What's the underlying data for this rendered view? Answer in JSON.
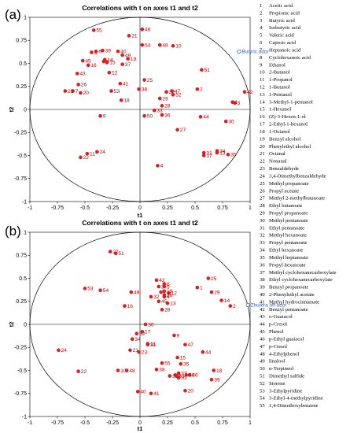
{
  "colors": {
    "point": "#e01b1b",
    "label": "#c00000",
    "odor": "#2e5fb8",
    "axis": "#000000",
    "circle": "#000000"
  },
  "chart_data": [
    {
      "type": "scatter",
      "panel": "(a)",
      "title": "Correlations with t on axes t1 and t2",
      "xlabel": "t1",
      "ylabel": "t2",
      "xlim": [
        -1,
        1
      ],
      "ylim": [
        -1,
        1
      ],
      "xticks": [
        "-1",
        "-0.75",
        "-0.5",
        "-0.25",
        "0",
        "0.25",
        "0.5",
        "0.75",
        "1"
      ],
      "yticks": [
        "1",
        "0.75",
        "0.5",
        "0.25",
        "0",
        "-0.25",
        "-0.5",
        "-0.75",
        "-1"
      ],
      "circle_radius": 1,
      "odor": {
        "label": "Butyric odor",
        "x": 0.9,
        "y": 0.63
      },
      "points": [
        {
          "id": "1",
          "x": 0.84,
          "y": 0.08
        },
        {
          "id": "2",
          "x": 0.52,
          "y": 0.22
        },
        {
          "id": "3",
          "x": 0.86,
          "y": 0.07
        },
        {
          "id": "4",
          "x": 0.16,
          "y": -0.61
        },
        {
          "id": "5",
          "x": -0.44,
          "y": 0.62
        },
        {
          "id": "6",
          "x": -0.4,
          "y": 0.63
        },
        {
          "id": "7",
          "x": -0.61,
          "y": 0.2
        },
        {
          "id": "8",
          "x": -0.33,
          "y": 0.52
        },
        {
          "id": "9",
          "x": -0.36,
          "y": -0.07
        },
        {
          "id": "10",
          "x": 0.3,
          "y": 0.69
        },
        {
          "id": "11",
          "x": -0.48,
          "y": -0.48
        },
        {
          "id": "12",
          "x": -0.28,
          "y": 0.4
        },
        {
          "id": "13",
          "x": 0.7,
          "y": -0.47
        },
        {
          "id": "14",
          "x": -0.32,
          "y": 0.54
        },
        {
          "id": "15",
          "x": -0.3,
          "y": 0.51
        },
        {
          "id": "16",
          "x": -0.47,
          "y": 0.48
        },
        {
          "id": "17",
          "x": 0.58,
          "y": -0.5
        },
        {
          "id": "18",
          "x": -0.17,
          "y": 0.1
        },
        {
          "id": "19",
          "x": -0.11,
          "y": 0.55
        },
        {
          "id": "20",
          "x": -0.54,
          "y": 0.18
        },
        {
          "id": "21",
          "x": -0.1,
          "y": 0.8
        },
        {
          "id": "22",
          "x": -0.54,
          "y": -0.52
        },
        {
          "id": "23",
          "x": -0.68,
          "y": 0.2
        },
        {
          "id": "24",
          "x": -0.39,
          "y": -0.46
        },
        {
          "id": "25",
          "x": 0.04,
          "y": 0.32
        },
        {
          "id": "26",
          "x": -0.56,
          "y": 0.27
        },
        {
          "id": "27",
          "x": 0.34,
          "y": -0.22
        },
        {
          "id": "28",
          "x": 0.2,
          "y": 0.04
        },
        {
          "id": "29",
          "x": 0.18,
          "y": 0.12
        },
        {
          "id": "30",
          "x": 0.78,
          "y": -0.13
        },
        {
          "id": "31",
          "x": 0.58,
          "y": -0.47
        },
        {
          "id": "32",
          "x": 0.24,
          "y": 0.19
        },
        {
          "id": "33",
          "x": 0.13,
          "y": -0.01
        },
        {
          "id": "34",
          "x": 0.7,
          "y": -0.45
        },
        {
          "id": "35",
          "x": 0.8,
          "y": -0.49
        },
        {
          "id": "36",
          "x": 0.2,
          "y": -0.06
        },
        {
          "id": "37",
          "x": -0.16,
          "y": 0.49
        },
        {
          "id": "38",
          "x": -0.01,
          "y": 0.22
        },
        {
          "id": "39",
          "x": -0.34,
          "y": 0.64
        },
        {
          "id": "40",
          "x": -0.2,
          "y": 0.63
        },
        {
          "id": "41",
          "x": -0.18,
          "y": 0.28
        },
        {
          "id": "42",
          "x": 0.95,
          "y": 0.19
        },
        {
          "id": "43",
          "x": -0.57,
          "y": 0.39
        },
        {
          "id": "44",
          "x": 0.55,
          "y": -0.08
        },
        {
          "id": "45",
          "x": -0.52,
          "y": 0.53
        },
        {
          "id": "46",
          "x": 0.02,
          "y": 0.87
        },
        {
          "id": "47",
          "x": 0.29,
          "y": 0.2
        },
        {
          "id": "48",
          "x": 0.18,
          "y": 0.7
        },
        {
          "id": "49",
          "x": -0.16,
          "y": 0.59
        },
        {
          "id": "50",
          "x": 0.04,
          "y": -0.07
        },
        {
          "id": "51",
          "x": 0.56,
          "y": 0.43
        },
        {
          "id": "52",
          "x": 0.3,
          "y": 0.16
        },
        {
          "id": "53",
          "x": -0.26,
          "y": 0.2
        },
        {
          "id": "54",
          "x": 0.02,
          "y": 0.7
        },
        {
          "id": "55",
          "x": -0.42,
          "y": 0.86
        }
      ]
    },
    {
      "type": "scatter",
      "panel": "(b)",
      "title": "Correlations with t on axes t1 and t2",
      "xlabel": "t1",
      "ylabel": "t2",
      "xlim": [
        -1,
        1
      ],
      "ylim": [
        -1,
        1
      ],
      "xticks": [
        "-1",
        "-0.75",
        "-0.5",
        "-0.25",
        "0",
        "0.25",
        "0.5",
        "0.75",
        "1"
      ],
      "yticks": [
        "1",
        "0.75",
        "0.5",
        "0.25",
        "0",
        "-0.25",
        "-0.5",
        "-0.75",
        "-1"
      ],
      "circle_radius": 1,
      "odor": {
        "label": "Zhutera off-odor",
        "x": 0.98,
        "y": 0.21
      },
      "points": [
        {
          "id": "1",
          "x": 0.52,
          "y": 0.4
        },
        {
          "id": "2",
          "x": 0.82,
          "y": 0.2
        },
        {
          "id": "3",
          "x": 0.17,
          "y": 0.41
        },
        {
          "id": "4",
          "x": 0.22,
          "y": 0.3
        },
        {
          "id": "5",
          "x": 0.22,
          "y": 0.41
        },
        {
          "id": "6",
          "x": 0.22,
          "y": 0.44
        },
        {
          "id": "7",
          "x": 0.19,
          "y": 0.35
        },
        {
          "id": "8",
          "x": 0.32,
          "y": -0.55
        },
        {
          "id": "9",
          "x": 0.31,
          "y": -0.12
        },
        {
          "id": "10",
          "x": -0.2,
          "y": -0.5
        },
        {
          "id": "11",
          "x": 0.07,
          "y": -0.21
        },
        {
          "id": "12",
          "x": 0.26,
          "y": 0.34
        },
        {
          "id": "13",
          "x": 0.25,
          "y": 0.23
        },
        {
          "id": "14",
          "x": 0.74,
          "y": 0.26
        },
        {
          "id": "15",
          "x": 0.34,
          "y": -0.36
        },
        {
          "id": "16",
          "x": -0.14,
          "y": 0.2
        },
        {
          "id": "17",
          "x": 0.02,
          "y": -0.08
        },
        {
          "id": "18",
          "x": 0.67,
          "y": -0.5
        },
        {
          "id": "19",
          "x": 0.22,
          "y": 0.36
        },
        {
          "id": "20",
          "x": 0.41,
          "y": -0.72
        },
        {
          "id": "21",
          "x": -0.09,
          "y": -0.28
        },
        {
          "id": "22",
          "x": -0.56,
          "y": -0.51
        },
        {
          "id": "23",
          "x": -0.01,
          "y": -0.3
        },
        {
          "id": "24",
          "x": -0.74,
          "y": -0.28
        },
        {
          "id": "25",
          "x": 0.62,
          "y": 0.5
        },
        {
          "id": "26",
          "x": 0.22,
          "y": 0.32
        },
        {
          "id": "27",
          "x": -0.27,
          "y": 0.79
        },
        {
          "id": "28",
          "x": 0.2,
          "y": 0.16
        },
        {
          "id": "29",
          "x": 0.65,
          "y": 0.35
        },
        {
          "id": "30",
          "x": 0.05,
          "y": 0.0
        },
        {
          "id": "31",
          "x": 0.07,
          "y": -0.22
        },
        {
          "id": "32",
          "x": 0.1,
          "y": 0.3
        },
        {
          "id": "33",
          "x": 0.35,
          "y": -0.58
        },
        {
          "id": "34",
          "x": -0.07,
          "y": -0.16
        },
        {
          "id": "35",
          "x": 0.37,
          "y": -0.43
        },
        {
          "id": "36",
          "x": 0.27,
          "y": -0.56
        },
        {
          "id": "37",
          "x": 0.35,
          "y": -0.53
        },
        {
          "id": "38",
          "x": 0.15,
          "y": -0.49
        },
        {
          "id": "39",
          "x": 0.65,
          "y": -0.6
        },
        {
          "id": "40",
          "x": -0.02,
          "y": -0.73
        },
        {
          "id": "41",
          "x": 0.1,
          "y": -0.75
        },
        {
          "id": "42",
          "x": 0.15,
          "y": 0.48
        },
        {
          "id": "43",
          "x": 0.33,
          "y": -0.56
        },
        {
          "id": "44",
          "x": 0.57,
          "y": -0.3
        },
        {
          "id": "45",
          "x": 0.17,
          "y": 0.25
        },
        {
          "id": "46",
          "x": 0.45,
          "y": -0.55
        },
        {
          "id": "47",
          "x": 0.41,
          "y": -0.22
        },
        {
          "id": "48",
          "x": -0.12,
          "y": -0.5
        },
        {
          "id": "49",
          "x": -0.08,
          "y": 0.35
        },
        {
          "id": "50",
          "x": 0.42,
          "y": -0.55
        },
        {
          "id": "51",
          "x": -0.22,
          "y": 0.77
        },
        {
          "id": "52",
          "x": -0.03,
          "y": -0.1
        },
        {
          "id": "53",
          "x": -0.5,
          "y": 0.39
        },
        {
          "id": "54",
          "x": -0.36,
          "y": 0.37
        },
        {
          "id": "55",
          "x": 0.2,
          "y": -0.42
        }
      ]
    }
  ],
  "legend": [
    {
      "num": "1",
      "name": "Acetic acid"
    },
    {
      "num": "2",
      "name": "Propionic acid"
    },
    {
      "num": "3",
      "name": "Butyric acid"
    },
    {
      "num": "4",
      "name": "Isobutyric acid"
    },
    {
      "num": "5",
      "name": "Valeric acid"
    },
    {
      "num": "6",
      "name": "Caproic acid"
    },
    {
      "num": "7",
      "name": "Heptanoic acid"
    },
    {
      "num": "8",
      "name": "Cyclohexanoic acid"
    },
    {
      "num": "9",
      "name": "Ethanol"
    },
    {
      "num": "10",
      "name": "2-Butanol"
    },
    {
      "num": "11",
      "name": "1-Propanol"
    },
    {
      "num": "12",
      "name": "1-Butanol"
    },
    {
      "num": "13",
      "name": "1-Pentanol"
    },
    {
      "num": "14",
      "name": "3-Methyl-1-pentanol"
    },
    {
      "num": "15",
      "name": "1-Hexanol"
    },
    {
      "num": "16",
      "name": "(Z)-3-Hexen-1-ol"
    },
    {
      "num": "17",
      "name": "2-Ethyl-1-hexanol"
    },
    {
      "num": "18",
      "name": "1-Octanol"
    },
    {
      "num": "19",
      "name": "Benzyl alcohol"
    },
    {
      "num": "20",
      "name": "Phenylethyl alcohol"
    },
    {
      "num": "21",
      "name": "Octanal"
    },
    {
      "num": "22",
      "name": "Nonanal"
    },
    {
      "num": "23",
      "name": "Benzaldehyde"
    },
    {
      "num": "24",
      "name": "3,4-Dimethylbenzaldehyde"
    },
    {
      "num": "25",
      "name": "Methyl propanoate"
    },
    {
      "num": "26",
      "name": "Propyl acetate"
    },
    {
      "num": "27",
      "name": "Methyl 2-methylbutanoate"
    },
    {
      "num": "28",
      "name": "Ethyl butanoate"
    },
    {
      "num": "29",
      "name": "Propyl propanoate"
    },
    {
      "num": "30",
      "name": "Methyl pentanoate"
    },
    {
      "num": "31",
      "name": "Ethyl pentanoate"
    },
    {
      "num": "32",
      "name": "Methyl hexanoate"
    },
    {
      "num": "33",
      "name": "Propyl pentanoate"
    },
    {
      "num": "34",
      "name": "Ethyl hexanoate"
    },
    {
      "num": "35",
      "name": "Methyl heptanoate"
    },
    {
      "num": "36",
      "name": "Propyl hexanoate"
    },
    {
      "num": "37",
      "name": "Methyl cyclohexanecarboxylate"
    },
    {
      "num": "38",
      "name": "Ethyl cyclohexanecarboxylate"
    },
    {
      "num": "39",
      "name": "Benzyl propanoate"
    },
    {
      "num": "40",
      "name": "2-Phenylethyl acetate"
    },
    {
      "num": "41",
      "name": "Methyl hydrocinnamate"
    },
    {
      "num": "42",
      "name": "Benzyl pentanoate"
    },
    {
      "num": "43",
      "name": "o-Guaiacol"
    },
    {
      "num": "44",
      "name": "p-Cresol"
    },
    {
      "num": "45",
      "name": "Phenol"
    },
    {
      "num": "46",
      "name": "p-Ethyl guaiacol"
    },
    {
      "num": "47",
      "name": "p-Cresol"
    },
    {
      "num": "48",
      "name": "4-Ethylphenol"
    },
    {
      "num": "49",
      "name": "linalool"
    },
    {
      "num": "50",
      "name": "α-Terpineol"
    },
    {
      "num": "51",
      "name": "Dimethyl sulfide"
    },
    {
      "num": "52",
      "name": "Styrene"
    },
    {
      "num": "53",
      "name": "3-Ethylpyridine"
    },
    {
      "num": "54",
      "name": "3-Ethyl-4-methylpyridine"
    },
    {
      "num": "55",
      "name": "1,4-Dimethoxybenzene"
    }
  ]
}
